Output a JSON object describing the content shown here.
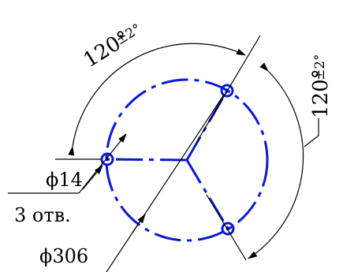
{
  "drawing": {
    "angle_dimension_top": "120°",
    "angle_tolerance_top": "±2°",
    "angle_dimension_right": "120°",
    "angle_tolerance_right": "±2°",
    "hole_diameter_label": "ϕ14",
    "hole_count_label": "3 отв.",
    "bolt_circle_label": "ϕ306",
    "colors": {
      "part_lines": "#0a18d8",
      "dimension_lines": "#000000"
    }
  }
}
